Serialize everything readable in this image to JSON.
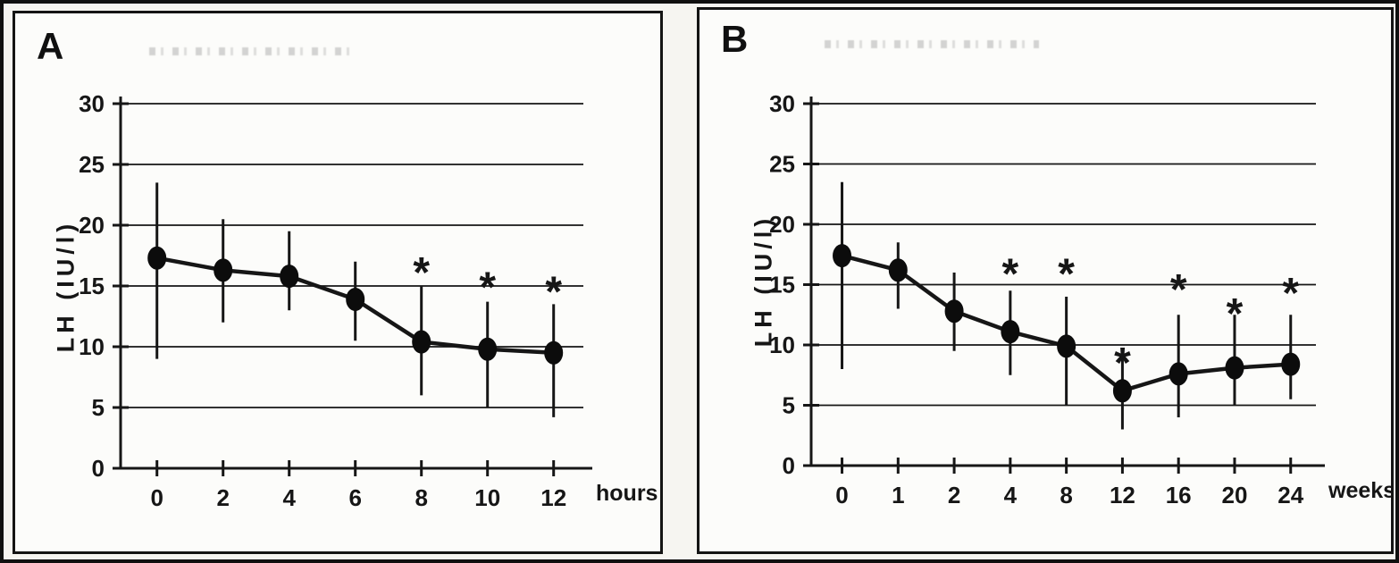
{
  "figure": {
    "panels": [
      {
        "label": "A"
      },
      {
        "label": "B"
      }
    ]
  },
  "chart_data": [
    {
      "type": "line",
      "panel": "A",
      "title": "",
      "xlabel": "",
      "ylabel": "LH (IU/l)",
      "x_unit_label": "hours",
      "ylim": [
        0,
        30
      ],
      "yticks": [
        0,
        5,
        10,
        15,
        20,
        25,
        30
      ],
      "grid": "horizontal",
      "legend": "none",
      "categories": [
        "0",
        "2",
        "4",
        "6",
        "8",
        "10",
        "12"
      ],
      "series": [
        {
          "name": "LH",
          "marker": "filled-circle",
          "color": "#0c0c0c",
          "values": [
            17.3,
            16.3,
            15.8,
            13.9,
            10.4,
            9.8,
            9.5
          ],
          "error_low": [
            9,
            12,
            13,
            10.5,
            6,
            5,
            4.2
          ],
          "error_high": [
            23.5,
            20.5,
            19.5,
            17,
            15,
            13.7,
            13.5
          ]
        }
      ],
      "significance_markers": [
        {
          "category": "8",
          "index": 4,
          "symbol": "*",
          "y": 16.4
        },
        {
          "category": "10",
          "index": 5,
          "symbol": "*",
          "y": 15.2
        },
        {
          "category": "12",
          "index": 6,
          "symbol": "*",
          "y": 14.8
        }
      ]
    },
    {
      "type": "line",
      "panel": "B",
      "title": "",
      "xlabel": "",
      "ylabel": "LH (IU/l)",
      "x_unit_label": "weeks",
      "ylim": [
        0,
        30
      ],
      "yticks": [
        0,
        5,
        10,
        15,
        20,
        25,
        30
      ],
      "grid": "horizontal",
      "legend": "none",
      "categories": [
        "0",
        "1",
        "2",
        "4",
        "8",
        "12",
        "16",
        "20",
        "24"
      ],
      "series": [
        {
          "name": "LH",
          "marker": "filled-circle",
          "color": "#0c0c0c",
          "values": [
            17.4,
            16.2,
            12.8,
            11.1,
            9.9,
            6.2,
            7.6,
            8.1,
            8.4
          ],
          "error_low": [
            8,
            13,
            9.5,
            7.5,
            5,
            3,
            4,
            5,
            5.5
          ],
          "error_high": [
            23.5,
            18.5,
            16,
            14.5,
            14,
            9,
            12.5,
            12.5,
            12.5
          ]
        }
      ],
      "significance_markers": [
        {
          "category": "4",
          "index": 3,
          "symbol": "*",
          "y": 16.2
        },
        {
          "category": "8",
          "index": 4,
          "symbol": "*",
          "y": 16.2
        },
        {
          "category": "12",
          "index": 5,
          "symbol": "*",
          "y": 8.8
        },
        {
          "category": "16",
          "index": 6,
          "symbol": "*",
          "y": 14.9
        },
        {
          "category": "20",
          "index": 7,
          "symbol": "*",
          "y": 12.9
        },
        {
          "category": "24",
          "index": 8,
          "symbol": "*",
          "y": 14.6
        }
      ]
    }
  ]
}
